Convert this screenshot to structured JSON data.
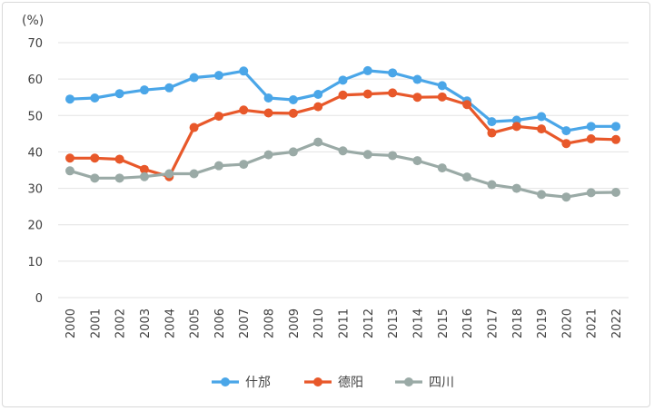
{
  "chart_data": {
    "type": "line",
    "title": "",
    "unit_label": "(%)",
    "xlabel": "",
    "ylabel": "",
    "ylim": [
      0,
      70
    ],
    "yticks": [
      0,
      10,
      20,
      30,
      40,
      50,
      60,
      70
    ],
    "grid": true,
    "legend_position": "bottom",
    "categories": [
      "2000",
      "2001",
      "2002",
      "2003",
      "2004",
      "2005",
      "2006",
      "2007",
      "2008",
      "2009",
      "2010",
      "2011",
      "2012",
      "2013",
      "2014",
      "2015",
      "2016",
      "2017",
      "2018",
      "2019",
      "2020",
      "2021",
      "2022"
    ],
    "series": [
      {
        "name": "什邡",
        "color": "#4aa6e8",
        "values": [
          54.5,
          54.8,
          56.0,
          57.0,
          57.6,
          60.4,
          61.0,
          62.2,
          54.8,
          54.3,
          55.8,
          59.7,
          62.3,
          61.7,
          59.9,
          58.2,
          54.0,
          48.3,
          48.7,
          49.7,
          45.8,
          47.0,
          47.0
        ]
      },
      {
        "name": "德阳",
        "color": "#e8582a",
        "values": [
          38.3,
          38.3,
          38.0,
          35.2,
          33.2,
          46.7,
          49.8,
          51.5,
          50.7,
          50.6,
          52.4,
          55.6,
          55.9,
          56.2,
          55.0,
          55.1,
          53.0,
          45.2,
          47.0,
          46.3,
          42.3,
          43.6,
          43.4
        ]
      },
      {
        "name": "四川",
        "color": "#9aaaa6",
        "values": [
          34.8,
          32.8,
          32.8,
          33.2,
          34.0,
          34.0,
          36.2,
          36.6,
          39.2,
          40.0,
          42.7,
          40.3,
          39.3,
          39.0,
          37.6,
          35.6,
          33.1,
          31.0,
          30.0,
          28.3,
          27.6,
          28.8,
          28.9
        ]
      }
    ]
  }
}
